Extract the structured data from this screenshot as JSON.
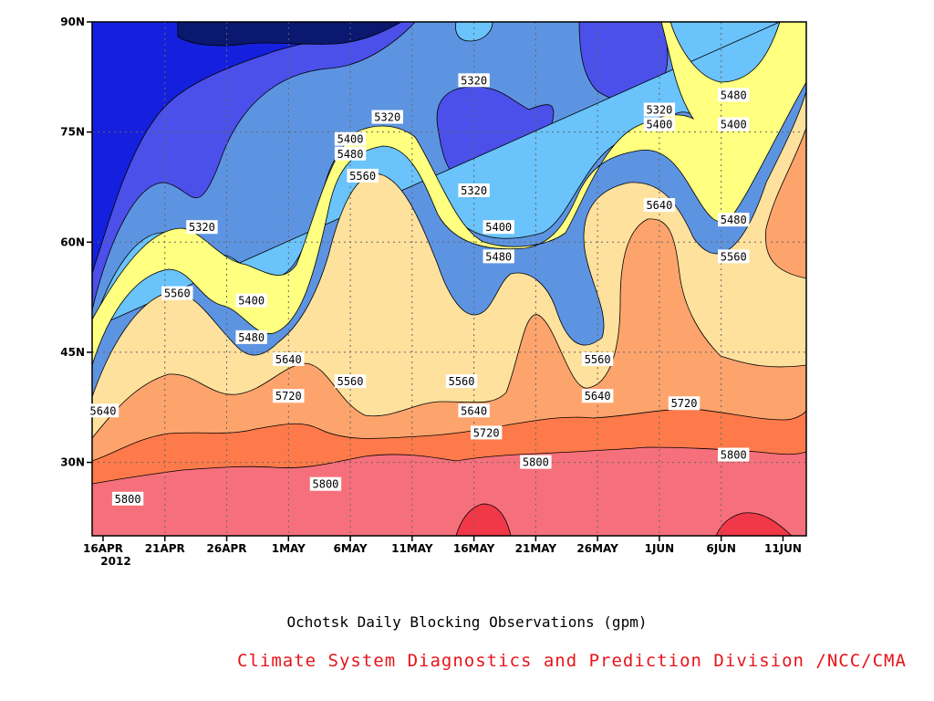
{
  "chart_data": {
    "type": "heatmap",
    "subtype": "filled-contour (time-latitude Hovmoller)",
    "title": "Ochotsk Daily Blocking Observations (gpm)",
    "xlabel": "",
    "ylabel": "",
    "x_ticks": [
      "16APR",
      "21APR",
      "26APR",
      "1MAY",
      "6MAY",
      "11MAY",
      "16MAY",
      "21MAY",
      "26MAY",
      "1JUN",
      "6JUN",
      "11JUN"
    ],
    "x_year_label": "2012",
    "x_range": [
      "2012-04-16",
      "2012-06-11"
    ],
    "y_ticks": [
      "30N",
      "45N",
      "60N",
      "75N",
      "90N"
    ],
    "y_tick_values": [
      30,
      45,
      60,
      75,
      90
    ],
    "ylim": [
      20,
      90
    ],
    "grid": "dotted",
    "contour_levels": [
      5320,
      5400,
      5480,
      5560,
      5640,
      5720,
      5800
    ],
    "fill_colors": [
      "#0a1870",
      "#1420dd",
      "#4b50ea",
      "#5d94e2",
      "#6ac3fa",
      "#ffff80",
      "#fde19d",
      "#fda46d",
      "#ff7a4a",
      "#f6707c",
      "#f13848"
    ],
    "contour_labels": [
      {
        "date": "2012-04-16",
        "lat": 37,
        "value": 5640
      },
      {
        "date": "2012-04-18",
        "lat": 25,
        "value": 5800
      },
      {
        "date": "2012-04-22",
        "lat": 53,
        "value": 5560
      },
      {
        "date": "2012-04-24",
        "lat": 62,
        "value": 5320
      },
      {
        "date": "2012-04-28",
        "lat": 52,
        "value": 5400
      },
      {
        "date": "2012-04-28",
        "lat": 47,
        "value": 5480
      },
      {
        "date": "2012-05-01",
        "lat": 44,
        "value": 5640
      },
      {
        "date": "2012-05-01",
        "lat": 39,
        "value": 5720
      },
      {
        "date": "2012-05-04",
        "lat": 27,
        "value": 5800
      },
      {
        "date": "2012-05-06",
        "lat": 74,
        "value": 5400
      },
      {
        "date": "2012-05-06",
        "lat": 72,
        "value": 5480
      },
      {
        "date": "2012-05-07",
        "lat": 69,
        "value": 5560
      },
      {
        "date": "2012-05-09",
        "lat": 77,
        "value": 5320
      },
      {
        "date": "2012-05-06",
        "lat": 41,
        "value": 5560
      },
      {
        "date": "2012-05-16",
        "lat": 82,
        "value": 5320
      },
      {
        "date": "2012-05-16",
        "lat": 67,
        "value": 5320
      },
      {
        "date": "2012-05-18",
        "lat": 62,
        "value": 5400
      },
      {
        "date": "2012-05-18",
        "lat": 58,
        "value": 5480
      },
      {
        "date": "2012-05-15",
        "lat": 41,
        "value": 5560
      },
      {
        "date": "2012-05-16",
        "lat": 37,
        "value": 5640
      },
      {
        "date": "2012-05-17",
        "lat": 34,
        "value": 5720
      },
      {
        "date": "2012-05-21",
        "lat": 30,
        "value": 5800
      },
      {
        "date": "2012-05-26",
        "lat": 44,
        "value": 5560
      },
      {
        "date": "2012-05-26",
        "lat": 39,
        "value": 5640
      },
      {
        "date": "2012-05-31",
        "lat": 78,
        "value": 5320
      },
      {
        "date": "2012-05-31",
        "lat": 76,
        "value": 5400
      },
      {
        "date": "2012-05-31",
        "lat": 65,
        "value": 5640
      },
      {
        "date": "2012-06-02",
        "lat": 38,
        "value": 5720
      },
      {
        "date": "2012-06-06",
        "lat": 80,
        "value": 5480
      },
      {
        "date": "2012-06-06",
        "lat": 76,
        "value": 5400
      },
      {
        "date": "2012-06-06",
        "lat": 63,
        "value": 5480
      },
      {
        "date": "2012-06-06",
        "lat": 58,
        "value": 5560
      },
      {
        "date": "2012-06-06",
        "lat": 31,
        "value": 5800
      }
    ]
  },
  "footer": {
    "credit": "Climate System Diagnostics and Prediction Division /NCC/CMA",
    "credit_color": "#e8141a"
  }
}
